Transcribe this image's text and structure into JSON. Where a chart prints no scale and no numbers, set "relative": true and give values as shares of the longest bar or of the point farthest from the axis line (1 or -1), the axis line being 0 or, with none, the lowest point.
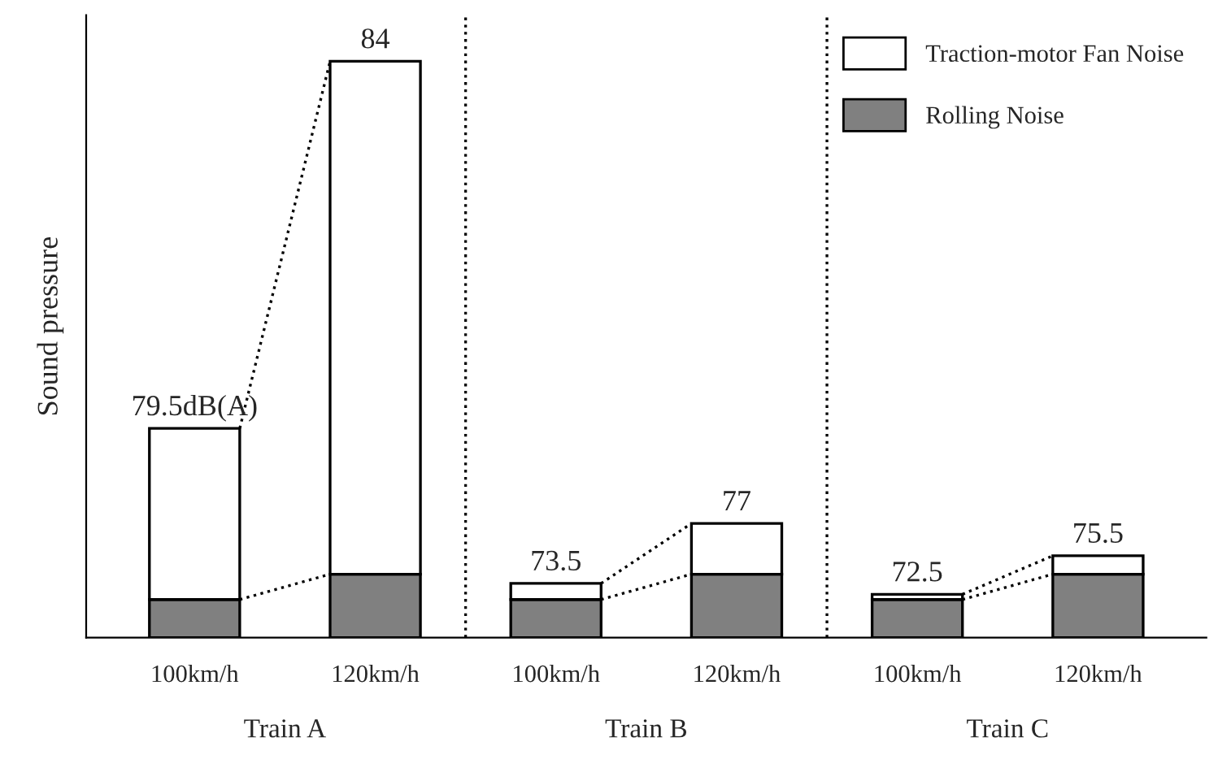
{
  "chart_data": {
    "type": "bar",
    "stacked": true,
    "relative": true,
    "ylabel": "Sound pressure",
    "categories": [
      "100km/h",
      "120km/h",
      "100km/h",
      "120km/h",
      "100km/h",
      "120km/h"
    ],
    "series": [
      {
        "name": "Rolling Noise",
        "color": "#808080",
        "values": [
          0.066,
          0.11,
          0.066,
          0.11,
          0.066,
          0.11
        ]
      },
      {
        "name": "Traction-motor Fan Noise",
        "color": "#ffffff",
        "values": [
          0.297,
          0.89,
          0.028,
          0.088,
          0.009,
          0.032
        ]
      }
    ],
    "annotations": [
      "Train A",
      "Train B",
      "Train C",
      "79.5dB(A)",
      "84",
      "73.5",
      "77",
      "72.5",
      "75.5"
    ],
    "legend": "top right"
  }
}
